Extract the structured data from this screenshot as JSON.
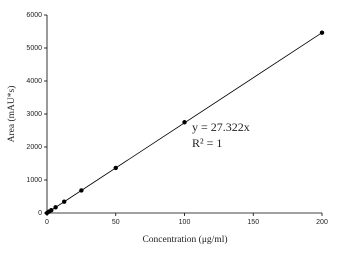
{
  "chart_data": {
    "type": "scatter",
    "x_label": "Concentration (μg/ml)",
    "y_label": "Area (mAU*s)",
    "annotations": [
      "y = 27.322x",
      "R² = 1"
    ],
    "series": [
      {
        "color": "#000000",
        "x": [
          0,
          1.5625,
          3.125,
          6.25,
          12.5,
          25,
          50,
          100,
          200
        ],
        "values": [
          0,
          43,
          85,
          171,
          342,
          683,
          1366,
          2750,
          5464
        ]
      }
    ],
    "trendline": {
      "color": "#000000",
      "x": [
        0,
        200
      ],
      "values": [
        0,
        5464.4
      ]
    },
    "xlim": [
      0,
      200
    ],
    "xticks": [
      0,
      50,
      100,
      150,
      200
    ],
    "ylim": [
      0,
      6000
    ],
    "yticks": [
      0,
      1000,
      2000,
      3000,
      4000,
      5000,
      6000
    ]
  }
}
